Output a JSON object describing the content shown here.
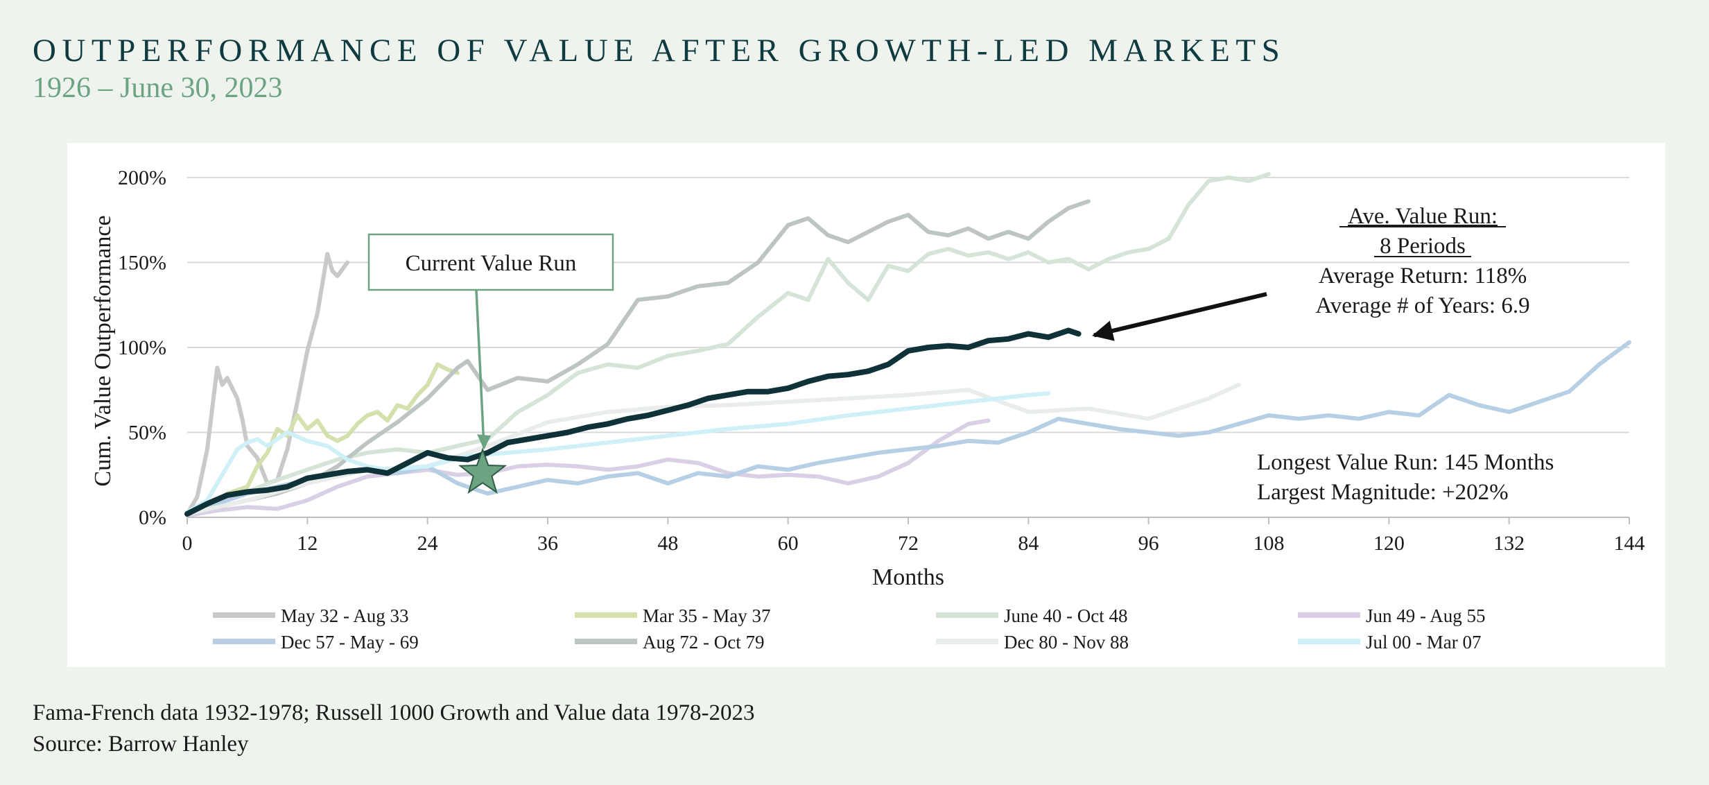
{
  "header": {
    "title": "OUTPERFORMANCE OF VALUE AFTER GROWTH-LED MARKETS",
    "subtitle": "1926 – June 30, 2023"
  },
  "footer": {
    "line1": "Fama-French data 1932-1978; Russell 1000 Growth and Value data 1978-2023",
    "line2": "Source: Barrow Hanley"
  },
  "colors": {
    "title": "#0f3a40",
    "subtitle": "#6ba383",
    "current": "#0f3238",
    "star": "#6ba383",
    "callout_border": "#6ba383",
    "grid": "#d9d9d9"
  },
  "chart_data": {
    "type": "line",
    "xlabel": "Months",
    "ylabel": "Cum. Value Outperformance",
    "xlim": [
      0,
      144
    ],
    "ylim": [
      0,
      200
    ],
    "x_ticks": [
      0,
      12,
      24,
      36,
      48,
      60,
      72,
      84,
      96,
      108,
      120,
      132,
      144
    ],
    "y_ticks": [
      0,
      50,
      100,
      150,
      200
    ],
    "y_tick_labels": [
      "0%",
      "50%",
      "100%",
      "150%",
      "200%"
    ],
    "grid": "horizontal",
    "legend_position": "bottom",
    "series": [
      {
        "name": "May 32 - Aug 33",
        "color": "#c9c9c9",
        "points": [
          [
            0,
            2
          ],
          [
            1,
            12
          ],
          [
            2,
            40
          ],
          [
            3,
            88
          ],
          [
            3.5,
            78
          ],
          [
            4,
            82
          ],
          [
            5,
            70
          ],
          [
            5.5,
            58
          ],
          [
            6,
            42
          ],
          [
            7,
            35
          ],
          [
            8,
            20
          ],
          [
            9,
            22
          ],
          [
            10,
            40
          ],
          [
            11,
            68
          ],
          [
            12,
            98
          ],
          [
            13,
            120
          ],
          [
            14,
            155
          ],
          [
            14.5,
            145
          ],
          [
            15,
            142
          ],
          [
            16,
            150
          ]
        ]
      },
      {
        "name": "Mar 35 - May 37",
        "color": "#d4e1ad",
        "points": [
          [
            0,
            3
          ],
          [
            2,
            6
          ],
          [
            4,
            14
          ],
          [
            6,
            18
          ],
          [
            7,
            30
          ],
          [
            8,
            38
          ],
          [
            9,
            52
          ],
          [
            10,
            48
          ],
          [
            11,
            60
          ],
          [
            12,
            52
          ],
          [
            13,
            57
          ],
          [
            14,
            48
          ],
          [
            15,
            45
          ],
          [
            16,
            48
          ],
          [
            17,
            55
          ],
          [
            18,
            60
          ],
          [
            19,
            62
          ],
          [
            20,
            57
          ],
          [
            21,
            66
          ],
          [
            22,
            64
          ],
          [
            23,
            72
          ],
          [
            24,
            78
          ],
          [
            25,
            90
          ],
          [
            26,
            87
          ],
          [
            27,
            85
          ]
        ]
      },
      {
        "name": "June 40 - Oct 48",
        "color": "#d4e5d8",
        "points": [
          [
            0,
            3
          ],
          [
            3,
            10
          ],
          [
            6,
            15
          ],
          [
            9,
            22
          ],
          [
            12,
            28
          ],
          [
            15,
            34
          ],
          [
            18,
            38
          ],
          [
            21,
            40
          ],
          [
            24,
            38
          ],
          [
            27,
            42
          ],
          [
            30,
            46
          ],
          [
            33,
            62
          ],
          [
            36,
            72
          ],
          [
            39,
            85
          ],
          [
            42,
            90
          ],
          [
            45,
            88
          ],
          [
            48,
            95
          ],
          [
            51,
            98
          ],
          [
            54,
            102
          ],
          [
            57,
            118
          ],
          [
            60,
            132
          ],
          [
            62,
            128
          ],
          [
            64,
            152
          ],
          [
            66,
            138
          ],
          [
            68,
            128
          ],
          [
            70,
            148
          ],
          [
            72,
            145
          ],
          [
            74,
            155
          ],
          [
            76,
            158
          ],
          [
            78,
            154
          ],
          [
            80,
            156
          ],
          [
            82,
            152
          ],
          [
            84,
            156
          ],
          [
            86,
            150
          ],
          [
            88,
            152
          ],
          [
            90,
            146
          ],
          [
            92,
            152
          ],
          [
            94,
            156
          ],
          [
            96,
            158
          ],
          [
            98,
            164
          ],
          [
            100,
            184
          ],
          [
            102,
            198
          ],
          [
            104,
            200
          ],
          [
            106,
            198
          ],
          [
            108,
            202
          ]
        ]
      },
      {
        "name": "Jun 49 - Aug 55",
        "color": "#d9d0e6",
        "points": [
          [
            0,
            1
          ],
          [
            3,
            4
          ],
          [
            6,
            6
          ],
          [
            9,
            5
          ],
          [
            12,
            10
          ],
          [
            15,
            18
          ],
          [
            18,
            24
          ],
          [
            21,
            26
          ],
          [
            24,
            28
          ],
          [
            27,
            25
          ],
          [
            30,
            26
          ],
          [
            33,
            30
          ],
          [
            36,
            31
          ],
          [
            39,
            30
          ],
          [
            42,
            28
          ],
          [
            45,
            30
          ],
          [
            48,
            34
          ],
          [
            51,
            32
          ],
          [
            54,
            26
          ],
          [
            57,
            24
          ],
          [
            60,
            25
          ],
          [
            63,
            24
          ],
          [
            66,
            20
          ],
          [
            69,
            24
          ],
          [
            72,
            32
          ],
          [
            75,
            45
          ],
          [
            78,
            55
          ],
          [
            80,
            57
          ]
        ]
      },
      {
        "name": "Dec 57 - May - 69",
        "color": "#b6cfe4",
        "points": [
          [
            0,
            2
          ],
          [
            3,
            8
          ],
          [
            6,
            14
          ],
          [
            9,
            18
          ],
          [
            12,
            22
          ],
          [
            15,
            26
          ],
          [
            18,
            28
          ],
          [
            21,
            26
          ],
          [
            24,
            30
          ],
          [
            27,
            20
          ],
          [
            30,
            14
          ],
          [
            33,
            18
          ],
          [
            36,
            22
          ],
          [
            39,
            20
          ],
          [
            42,
            24
          ],
          [
            45,
            26
          ],
          [
            48,
            20
          ],
          [
            51,
            26
          ],
          [
            54,
            24
          ],
          [
            57,
            30
          ],
          [
            60,
            28
          ],
          [
            63,
            32
          ],
          [
            66,
            35
          ],
          [
            69,
            38
          ],
          [
            72,
            40
          ],
          [
            75,
            42
          ],
          [
            78,
            45
          ],
          [
            81,
            44
          ],
          [
            84,
            50
          ],
          [
            87,
            58
          ],
          [
            90,
            55
          ],
          [
            93,
            52
          ],
          [
            96,
            50
          ],
          [
            99,
            48
          ],
          [
            102,
            50
          ],
          [
            105,
            55
          ],
          [
            108,
            60
          ],
          [
            111,
            58
          ],
          [
            114,
            60
          ],
          [
            117,
            58
          ],
          [
            120,
            62
          ],
          [
            123,
            60
          ],
          [
            126,
            72
          ],
          [
            129,
            66
          ],
          [
            132,
            62
          ],
          [
            135,
            68
          ],
          [
            138,
            74
          ],
          [
            141,
            90
          ],
          [
            144,
            103
          ]
        ]
      },
      {
        "name": "Aug 72 - Oct 79",
        "color": "#bcc4c4",
        "points": [
          [
            0,
            2
          ],
          [
            3,
            6
          ],
          [
            6,
            10
          ],
          [
            9,
            14
          ],
          [
            12,
            20
          ],
          [
            15,
            30
          ],
          [
            18,
            44
          ],
          [
            21,
            56
          ],
          [
            24,
            70
          ],
          [
            27,
            88
          ],
          [
            28,
            92
          ],
          [
            30,
            75
          ],
          [
            33,
            82
          ],
          [
            36,
            80
          ],
          [
            39,
            90
          ],
          [
            42,
            102
          ],
          [
            45,
            128
          ],
          [
            48,
            130
          ],
          [
            51,
            136
          ],
          [
            54,
            138
          ],
          [
            57,
            150
          ],
          [
            60,
            172
          ],
          [
            62,
            176
          ],
          [
            64,
            166
          ],
          [
            66,
            162
          ],
          [
            68,
            168
          ],
          [
            70,
            174
          ],
          [
            72,
            178
          ],
          [
            74,
            168
          ],
          [
            76,
            166
          ],
          [
            78,
            170
          ],
          [
            80,
            164
          ],
          [
            82,
            168
          ],
          [
            84,
            164
          ],
          [
            86,
            174
          ],
          [
            88,
            182
          ],
          [
            90,
            186
          ]
        ]
      },
      {
        "name": "Dec 80 - Nov 88",
        "color": "#e8ecea",
        "points": [
          [
            0,
            2
          ],
          [
            6,
            10
          ],
          [
            12,
            20
          ],
          [
            18,
            28
          ],
          [
            24,
            30
          ],
          [
            30,
            42
          ],
          [
            36,
            56
          ],
          [
            42,
            62
          ],
          [
            48,
            65
          ],
          [
            54,
            66
          ],
          [
            60,
            68
          ],
          [
            66,
            70
          ],
          [
            72,
            72
          ],
          [
            78,
            75
          ],
          [
            84,
            62
          ],
          [
            90,
            64
          ],
          [
            96,
            58
          ],
          [
            102,
            70
          ],
          [
            105,
            78
          ]
        ]
      },
      {
        "name": "Jul 00 - Mar 07",
        "color": "#cff0f6",
        "points": [
          [
            0,
            3
          ],
          [
            2,
            10
          ],
          [
            4,
            30
          ],
          [
            5,
            40
          ],
          [
            6,
            44
          ],
          [
            7,
            46
          ],
          [
            8,
            42
          ],
          [
            10,
            50
          ],
          [
            12,
            45
          ],
          [
            14,
            42
          ],
          [
            16,
            34
          ],
          [
            18,
            30
          ],
          [
            20,
            28
          ],
          [
            24,
            30
          ],
          [
            28,
            36
          ],
          [
            32,
            38
          ],
          [
            36,
            40
          ],
          [
            42,
            44
          ],
          [
            48,
            48
          ],
          [
            54,
            52
          ],
          [
            60,
            55
          ],
          [
            66,
            60
          ],
          [
            72,
            64
          ],
          [
            78,
            68
          ],
          [
            84,
            72
          ],
          [
            86,
            73
          ]
        ]
      },
      {
        "name": "Current Value Run",
        "color": "#0f3238",
        "points": [
          [
            0,
            2
          ],
          [
            2,
            8
          ],
          [
            4,
            13
          ],
          [
            6,
            15
          ],
          [
            8,
            16
          ],
          [
            10,
            18
          ],
          [
            12,
            23
          ],
          [
            14,
            25
          ],
          [
            16,
            27
          ],
          [
            18,
            28
          ],
          [
            20,
            26
          ],
          [
            22,
            32
          ],
          [
            24,
            38
          ],
          [
            26,
            35
          ],
          [
            28,
            34
          ],
          [
            30,
            38
          ],
          [
            32,
            44
          ],
          [
            34,
            46
          ],
          [
            36,
            48
          ],
          [
            38,
            50
          ],
          [
            40,
            53
          ],
          [
            42,
            55
          ],
          [
            44,
            58
          ],
          [
            46,
            60
          ],
          [
            48,
            63
          ],
          [
            50,
            66
          ],
          [
            52,
            70
          ],
          [
            54,
            72
          ],
          [
            56,
            74
          ],
          [
            58,
            74
          ],
          [
            60,
            76
          ],
          [
            62,
            80
          ],
          [
            64,
            83
          ],
          [
            66,
            84
          ],
          [
            68,
            86
          ],
          [
            70,
            90
          ],
          [
            72,
            98
          ],
          [
            74,
            100
          ],
          [
            76,
            101
          ],
          [
            78,
            100
          ],
          [
            80,
            104
          ],
          [
            82,
            105
          ],
          [
            84,
            108
          ],
          [
            86,
            106
          ],
          [
            88,
            110
          ],
          [
            89,
            108
          ]
        ]
      }
    ],
    "annotations": {
      "callout": "Current Value Run",
      "avg_title_1": "Ave. Value Run:",
      "avg_title_2": "8 Periods",
      "avg_return": "Average Return: 118%",
      "avg_years": "Average # of Years: 6.9",
      "longest": "Longest Value Run: 145 Months",
      "largest": "Largest Magnitude:  +202%"
    }
  }
}
